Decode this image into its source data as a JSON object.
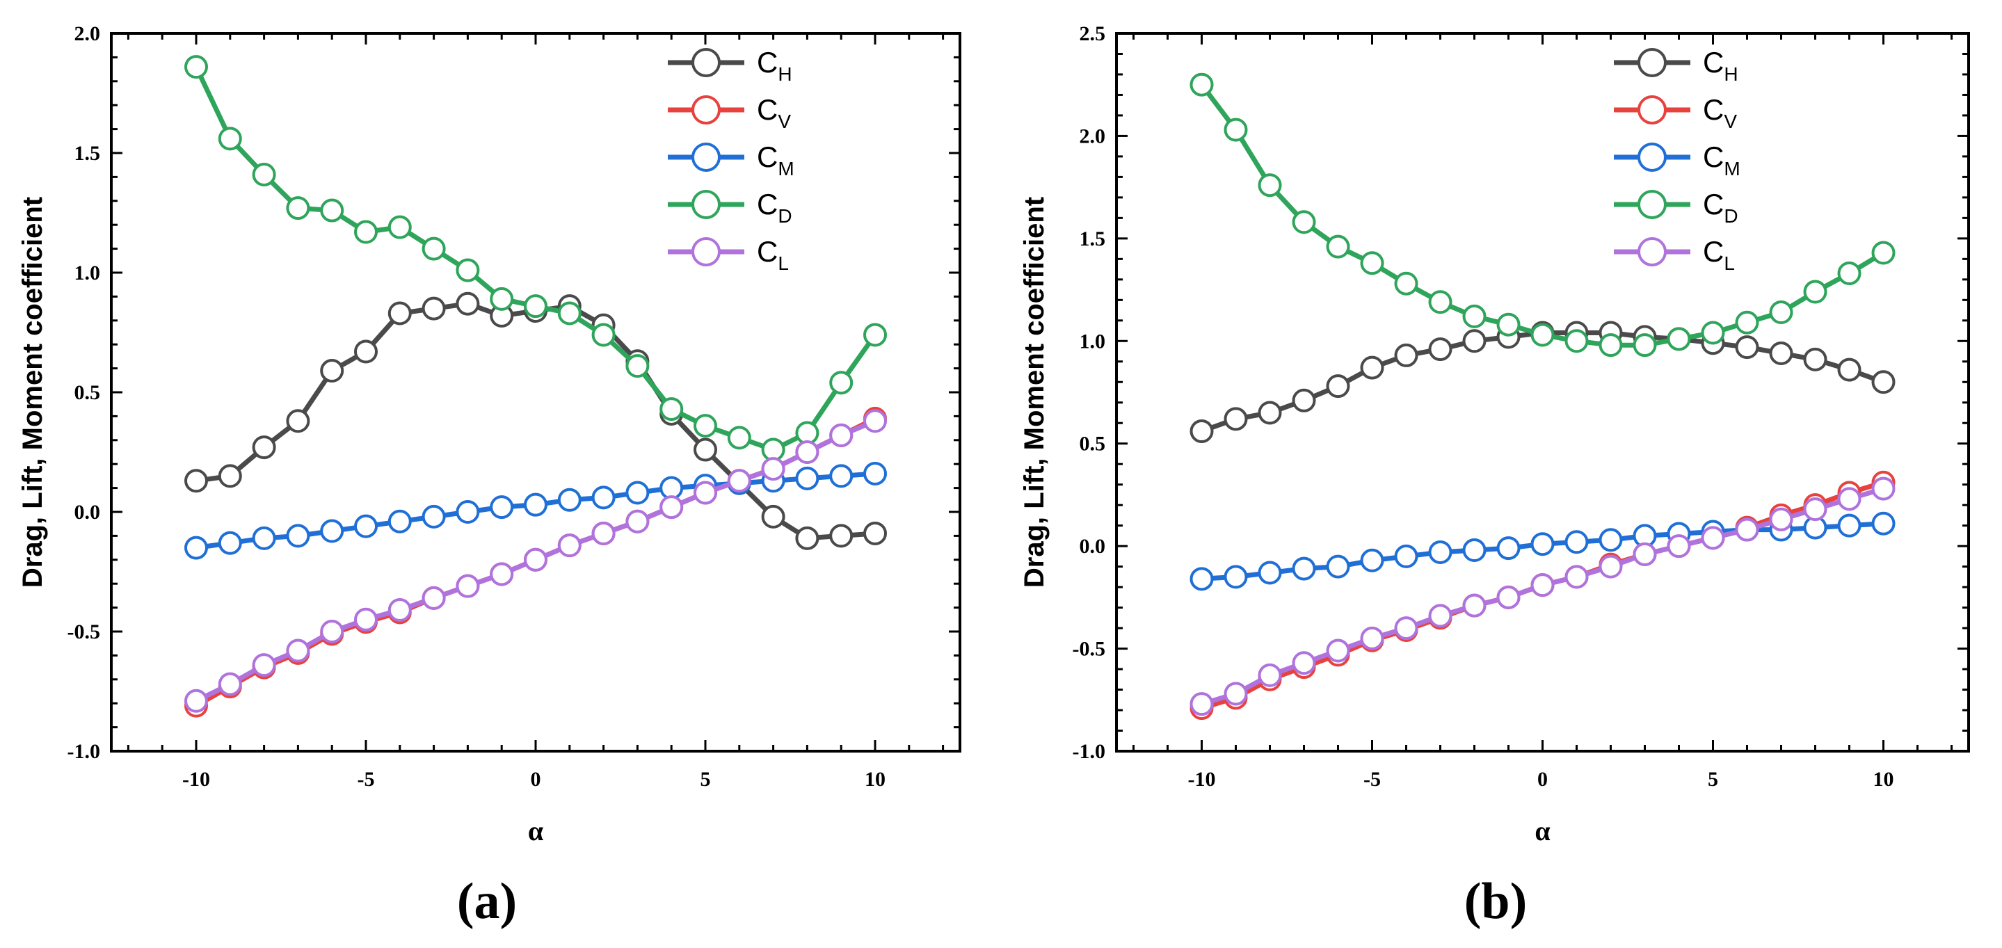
{
  "figure": {
    "panel_labels": [
      "(a)",
      "(b)"
    ]
  },
  "chart_data": [
    {
      "type": "line",
      "panel": "(a)",
      "title": "",
      "xlabel": "α",
      "ylabel": "Drag, Lift, Moment coefficient",
      "xlim": [
        -12.5,
        12.5
      ],
      "ylim": [
        -1.0,
        2.0
      ],
      "xticks": [
        -10,
        -5,
        0,
        5,
        10
      ],
      "xticklabels": [
        "-10",
        "-5",
        "0",
        "5",
        "10"
      ],
      "yticks": [
        -1.0,
        -0.5,
        0.0,
        0.5,
        1.0,
        1.5,
        2.0
      ],
      "yticklabels": [
        "-1.0",
        "-0.5",
        "0.0",
        "0.5",
        "1.0",
        "1.5",
        "2.0"
      ],
      "grid": false,
      "legend_position": "top-right",
      "x": [
        -10,
        -9,
        -8,
        -7,
        -6,
        -5,
        -4,
        -3,
        -2,
        -1,
        0,
        1,
        2,
        3,
        4,
        5,
        6,
        7,
        8,
        9,
        10
      ],
      "series": [
        {
          "name": "C",
          "sub": "H",
          "color": "#4a4a4a",
          "values": [
            0.13,
            0.15,
            0.27,
            0.38,
            0.59,
            0.67,
            0.83,
            0.85,
            0.87,
            0.82,
            0.84,
            0.86,
            0.78,
            0.63,
            0.41,
            0.26,
            0.12,
            -0.02,
            -0.11,
            -0.1,
            -0.09
          ]
        },
        {
          "name": "C",
          "sub": "V",
          "color": "#e8423f",
          "values": [
            -0.81,
            -0.73,
            -0.65,
            -0.59,
            -0.51,
            -0.46,
            -0.42,
            -0.36,
            -0.31,
            -0.26,
            -0.2,
            -0.14,
            -0.09,
            -0.04,
            0.02,
            0.08,
            0.13,
            0.18,
            0.25,
            0.32,
            0.39
          ]
        },
        {
          "name": "C",
          "sub": "M",
          "color": "#1f6fd6",
          "values": [
            -0.15,
            -0.13,
            -0.11,
            -0.1,
            -0.08,
            -0.06,
            -0.04,
            -0.02,
            0.0,
            0.02,
            0.03,
            0.05,
            0.06,
            0.08,
            0.1,
            0.11,
            0.12,
            0.13,
            0.14,
            0.15,
            0.16
          ]
        },
        {
          "name": "C",
          "sub": "D",
          "color": "#2ea55a",
          "values": [
            1.86,
            1.56,
            1.41,
            1.27,
            1.26,
            1.17,
            1.19,
            1.1,
            1.01,
            0.89,
            0.86,
            0.83,
            0.74,
            0.61,
            0.43,
            0.36,
            0.31,
            0.26,
            0.33,
            0.54,
            0.74
          ]
        },
        {
          "name": "C",
          "sub": "L",
          "color": "#b072dc",
          "values": [
            -0.79,
            -0.72,
            -0.64,
            -0.58,
            -0.5,
            -0.45,
            -0.41,
            -0.36,
            -0.31,
            -0.26,
            -0.2,
            -0.14,
            -0.09,
            -0.04,
            0.02,
            0.08,
            0.13,
            0.18,
            0.25,
            0.32,
            0.38
          ]
        }
      ]
    },
    {
      "type": "line",
      "panel": "(b)",
      "title": "",
      "xlabel": "α",
      "ylabel": "Drag, Lift, Moment coefficient",
      "xlim": [
        -12.5,
        12.5
      ],
      "ylim": [
        -1.0,
        2.5
      ],
      "xticks": [
        -10,
        -5,
        0,
        5,
        10
      ],
      "xticklabels": [
        "-10",
        "-5",
        "0",
        "5",
        "10"
      ],
      "yticks": [
        -1.0,
        -0.5,
        0.0,
        0.5,
        1.0,
        1.5,
        2.0,
        2.5
      ],
      "yticklabels": [
        "-1.0",
        "-0.5",
        "0.0",
        "0.5",
        "1.0",
        "1.5",
        "2.0",
        "2.5"
      ],
      "grid": false,
      "legend_position": "top-right",
      "x": [
        -10,
        -9,
        -8,
        -7,
        -6,
        -5,
        -4,
        -3,
        -2,
        -1,
        0,
        1,
        2,
        3,
        4,
        5,
        6,
        7,
        8,
        9,
        10
      ],
      "series": [
        {
          "name": "C",
          "sub": "H",
          "color": "#4a4a4a",
          "values": [
            0.56,
            0.62,
            0.65,
            0.71,
            0.78,
            0.87,
            0.93,
            0.96,
            1.0,
            1.02,
            1.04,
            1.04,
            1.04,
            1.02,
            1.01,
            0.99,
            0.97,
            0.94,
            0.91,
            0.86,
            0.8
          ]
        },
        {
          "name": "C",
          "sub": "V",
          "color": "#e8423f",
          "values": [
            -0.79,
            -0.74,
            -0.65,
            -0.59,
            -0.53,
            -0.46,
            -0.41,
            -0.35,
            -0.29,
            -0.25,
            -0.19,
            -0.15,
            -0.09,
            -0.04,
            0.0,
            0.04,
            0.09,
            0.15,
            0.2,
            0.26,
            0.31
          ]
        },
        {
          "name": "C",
          "sub": "M",
          "color": "#1f6fd6",
          "values": [
            -0.16,
            -0.15,
            -0.13,
            -0.11,
            -0.1,
            -0.07,
            -0.05,
            -0.03,
            -0.02,
            -0.01,
            0.01,
            0.02,
            0.03,
            0.05,
            0.06,
            0.07,
            0.08,
            0.08,
            0.09,
            0.1,
            0.11
          ]
        },
        {
          "name": "C",
          "sub": "D",
          "color": "#2ea55a",
          "values": [
            2.25,
            2.03,
            1.76,
            1.58,
            1.46,
            1.38,
            1.28,
            1.19,
            1.12,
            1.08,
            1.03,
            1.0,
            0.98,
            0.98,
            1.01,
            1.04,
            1.09,
            1.14,
            1.24,
            1.33,
            1.43
          ]
        },
        {
          "name": "C",
          "sub": "L",
          "color": "#b072dc",
          "values": [
            -0.77,
            -0.72,
            -0.63,
            -0.57,
            -0.51,
            -0.45,
            -0.4,
            -0.34,
            -0.29,
            -0.25,
            -0.19,
            -0.15,
            -0.1,
            -0.04,
            0.0,
            0.04,
            0.08,
            0.13,
            0.18,
            0.23,
            0.28
          ]
        }
      ]
    }
  ]
}
